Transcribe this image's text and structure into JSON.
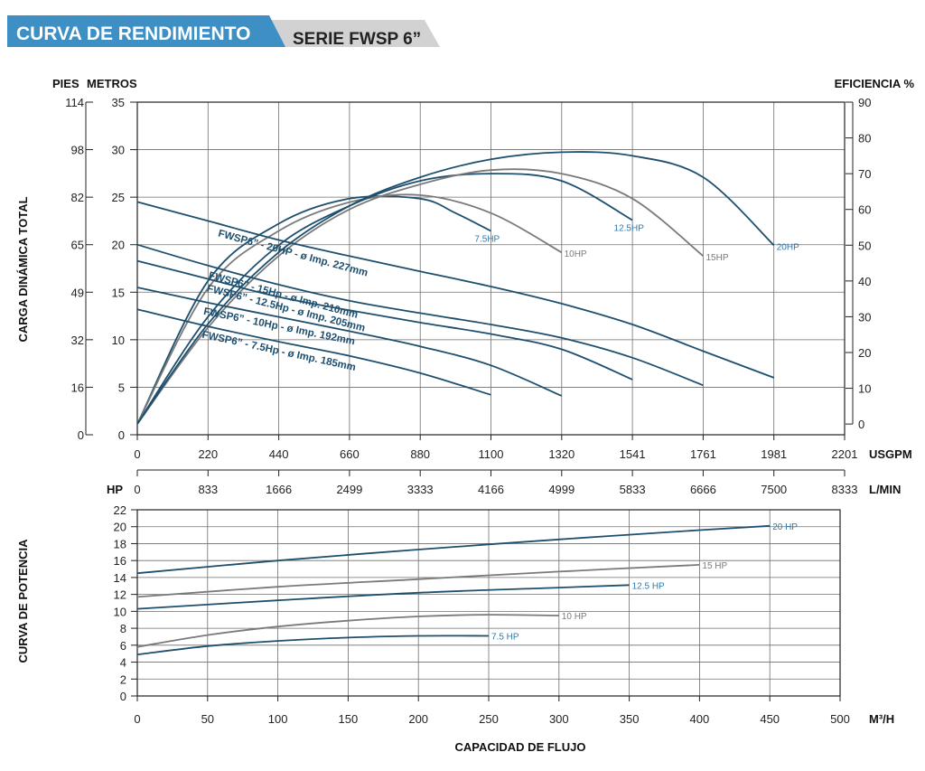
{
  "header": {
    "title": "CURVA DE RENDIMIENTO",
    "series": "SERIE FWSP 6”"
  },
  "colors": {
    "banner_blue": "#3d8fc4",
    "banner_gray": "#d2d2d2",
    "curve_blue": "#1e4f6e",
    "curve_gray": "#7a7a7a",
    "label_blue": "#2f78ad",
    "grid": "#6f6f6f"
  },
  "chart_data": [
    {
      "type": "line",
      "name": "performance",
      "units": {
        "feet": "PIES",
        "meters": "METROS",
        "efficiency": "EFICIENCIA %",
        "usgpm": "USGPM",
        "lmin": "L/MIN",
        "hp": "HP"
      },
      "ylabel": "CARGA DINÁMICA TOTAL",
      "x_ticks_usgpm": [
        "0",
        "220",
        "440",
        "660",
        "880",
        "1100",
        "1320",
        "1541",
        "1761",
        "1981",
        "2201"
      ],
      "x_ticks_lmin": [
        "0",
        "833",
        "1666",
        "2499",
        "3333",
        "4166",
        "4999",
        "5833",
        "6666",
        "7500",
        "8333"
      ],
      "y_ticks_meters": [
        "0",
        "5",
        "10",
        "15",
        "20",
        "25",
        "30",
        "35"
      ],
      "y_ticks_feet": [
        "0",
        "16",
        "32",
        "49",
        "65",
        "82",
        "98",
        "114"
      ],
      "y_ticks_efficiency": [
        "0",
        "10",
        "20",
        "30",
        "40",
        "50",
        "60",
        "70",
        "80",
        "90"
      ],
      "xlim": [
        0,
        2201
      ],
      "ylim": [
        0,
        35
      ],
      "efficiency_ylim": [
        -3,
        90
      ],
      "grid": true,
      "head_curves": [
        {
          "name": "FWSP6” - 20HP - ø Imp. 227mm",
          "color": "blue",
          "x": [
            0,
            220,
            440,
            660,
            880,
            1100,
            1320,
            1541,
            1761,
            1981
          ],
          "y": [
            24.5,
            22.5,
            20.5,
            18.8,
            17.2,
            15.6,
            13.8,
            11.6,
            8.8,
            6.0
          ]
        },
        {
          "name": "FWSP6” - 15Hp - ø Imp. 210mm",
          "color": "blue",
          "x": [
            0,
            220,
            440,
            660,
            880,
            1100,
            1320,
            1541,
            1761
          ],
          "y": [
            20.0,
            17.8,
            15.8,
            14.1,
            12.8,
            11.6,
            10.2,
            8.1,
            5.2
          ]
        },
        {
          "name": "FWSP6” - 12.5Hp - ø Imp. 205mm",
          "color": "blue",
          "x": [
            0,
            220,
            440,
            660,
            880,
            1100,
            1320,
            1541
          ],
          "y": [
            18.3,
            16.4,
            14.5,
            13.1,
            11.8,
            10.6,
            9.0,
            5.8
          ]
        },
        {
          "name": "FWSP6” - 10Hp - ø Imp. 192mm",
          "color": "blue",
          "x": [
            0,
            220,
            440,
            660,
            880,
            1100,
            1320
          ],
          "y": [
            15.5,
            13.9,
            12.4,
            10.9,
            9.3,
            7.3,
            4.1
          ]
        },
        {
          "name": "FWSP6” - 7.5Hp - ø Imp. 185mm",
          "color": "blue",
          "x": [
            0,
            220,
            440,
            660,
            880,
            1100
          ],
          "y": [
            13.2,
            11.4,
            9.8,
            8.3,
            6.5,
            4.2
          ]
        }
      ],
      "efficiency_curves": [
        {
          "name": "7.5HP",
          "color": "blue",
          "x": [
            0,
            220,
            440,
            660,
            880,
            990,
            1100
          ],
          "y": [
            0,
            40,
            56,
            63,
            63,
            59,
            54
          ]
        },
        {
          "name": "10HP",
          "color": "gray",
          "x": [
            0,
            220,
            440,
            660,
            880,
            1100,
            1320
          ],
          "y": [
            0,
            38,
            54,
            62,
            64,
            59,
            48
          ]
        },
        {
          "name": "12.5HP",
          "color": "blue",
          "x": [
            0,
            220,
            440,
            660,
            880,
            1100,
            1320,
            1541
          ],
          "y": [
            0,
            30,
            50,
            61,
            68,
            70,
            68,
            57
          ]
        },
        {
          "name": "15HP",
          "color": "gray",
          "x": [
            0,
            220,
            440,
            660,
            880,
            1100,
            1320,
            1541,
            1761
          ],
          "y": [
            0,
            27,
            47,
            60,
            67,
            71,
            70,
            63,
            47
          ]
        },
        {
          "name": "20HP",
          "color": "blue",
          "x": [
            0,
            220,
            440,
            660,
            880,
            1100,
            1320,
            1541,
            1761,
            1981
          ],
          "y": [
            0,
            28,
            48,
            61,
            69,
            74,
            76,
            75,
            69,
            50
          ]
        }
      ]
    },
    {
      "type": "line",
      "name": "power",
      "ylabel": "CURVA DE POTENCIA",
      "xlabel": "CAPACIDAD DE FLUJO",
      "x_unit": "M³/H",
      "x_ticks": [
        "0",
        "50",
        "100",
        "150",
        "200",
        "250",
        "300",
        "350",
        "400",
        "450",
        "500"
      ],
      "y_ticks": [
        "0",
        "2",
        "4",
        "6",
        "8",
        "10",
        "12",
        "14",
        "16",
        "18",
        "20",
        "22"
      ],
      "xlim": [
        0,
        500
      ],
      "ylim": [
        0,
        22
      ],
      "grid": true,
      "series": [
        {
          "name": "20 HP",
          "color": "blue",
          "x": [
            0,
            100,
            200,
            300,
            400,
            450
          ],
          "y": [
            14.5,
            16.0,
            17.3,
            18.5,
            19.6,
            20.1
          ]
        },
        {
          "name": "15 HP",
          "color": "gray",
          "x": [
            0,
            100,
            200,
            300,
            400
          ],
          "y": [
            11.7,
            12.9,
            13.8,
            14.7,
            15.5
          ]
        },
        {
          "name": "12.5 HP",
          "color": "blue",
          "x": [
            0,
            100,
            200,
            300,
            350
          ],
          "y": [
            10.3,
            11.3,
            12.2,
            12.8,
            13.1
          ]
        },
        {
          "name": "10 HP",
          "color": "gray",
          "x": [
            0,
            50,
            100,
            150,
            200,
            250,
            300
          ],
          "y": [
            5.8,
            7.2,
            8.2,
            8.9,
            9.4,
            9.6,
            9.5
          ]
        },
        {
          "name": "7.5 HP",
          "color": "blue",
          "x": [
            0,
            50,
            100,
            150,
            200,
            250
          ],
          "y": [
            4.9,
            5.9,
            6.5,
            6.9,
            7.1,
            7.1
          ]
        }
      ]
    }
  ]
}
